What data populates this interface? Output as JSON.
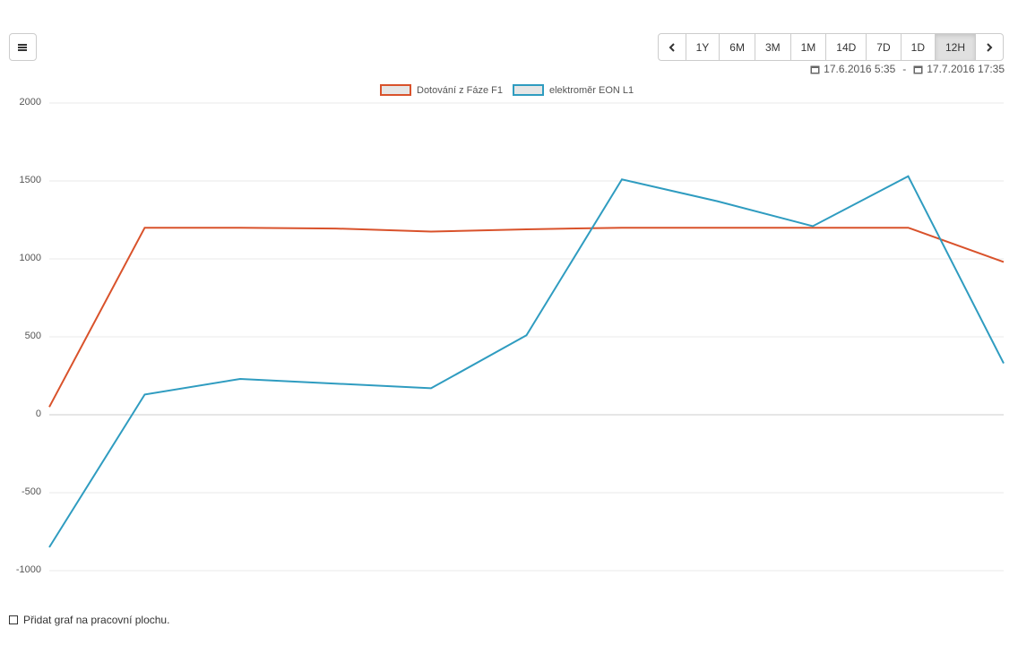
{
  "toolbar": {
    "range_buttons": [
      {
        "label": "1Y"
      },
      {
        "label": "6M"
      },
      {
        "label": "3M"
      },
      {
        "label": "1M"
      },
      {
        "label": "14D"
      },
      {
        "label": "7D"
      },
      {
        "label": "1D"
      },
      {
        "label": "12H",
        "active": true
      }
    ],
    "date_from": "17.6.2016 5:35",
    "date_separator": "-",
    "date_to": "17.7.2016 17:35"
  },
  "chart_data": {
    "type": "line",
    "categories": [
      null,
      null,
      null,
      null,
      null,
      null,
      null,
      null,
      null,
      null,
      null
    ],
    "series": [
      {
        "name": "Dotování z Fáze F1",
        "color": "#d9522b",
        "values": [
          50,
          1200,
          1200,
          1195,
          1175,
          1190,
          1200,
          1200,
          1200,
          1200,
          980
        ]
      },
      {
        "name": "elektroměr EON L1",
        "color": "#2f9cc0",
        "values": [
          -850,
          130,
          230,
          200,
          170,
          510,
          1510,
          1370,
          1210,
          1530,
          330
        ]
      }
    ],
    "ylim": [
      -1000,
      2000
    ],
    "yticks": [
      -1000,
      -500,
      0,
      500,
      1000,
      1500,
      2000
    ],
    "grid": true
  },
  "footer": {
    "checkbox_label": "Přidat graf na pracovní plochu."
  }
}
